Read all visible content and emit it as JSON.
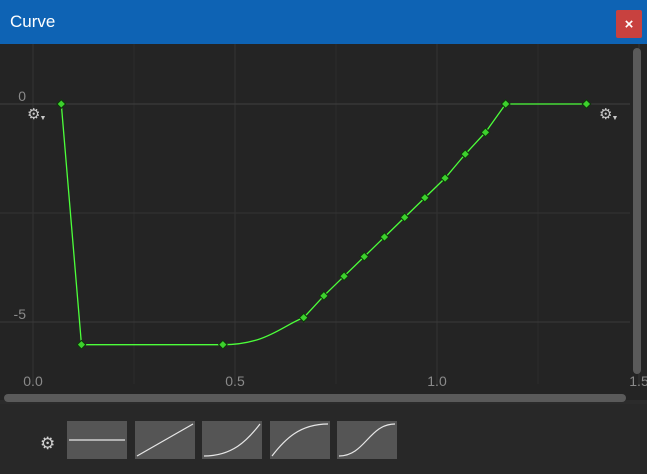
{
  "window": {
    "title": "Curve",
    "close_label": "×"
  },
  "axes": {
    "y_ticks": [
      "0",
      "-5"
    ],
    "x_ticks": [
      "0.0",
      "0.5",
      "1.0",
      "1.5"
    ]
  },
  "chart_data": {
    "type": "line",
    "title": "",
    "xlabel": "",
    "ylabel": "",
    "x_tick_labels": [
      "0.0",
      "0.5",
      "1.0",
      "1.5"
    ],
    "y_tick_labels": [
      "0",
      "-5"
    ],
    "color": "#4cff3a",
    "series": [
      {
        "x": [
          0.07,
          0.12,
          0.47,
          0.67,
          0.72,
          0.77,
          0.82,
          0.87,
          0.92,
          0.97,
          1.02,
          1.07,
          1.12,
          1.17,
          1.37
        ],
        "y": [
          0.0,
          -5.52,
          -5.52,
          -4.9,
          -4.4,
          -3.95,
          -3.5,
          -3.05,
          -2.6,
          -2.15,
          -1.7,
          -1.15,
          -0.65,
          0.0,
          0.0
        ],
        "marked": [
          true,
          true,
          true,
          true,
          true,
          true,
          true,
          true,
          true,
          true,
          true,
          true,
          true,
          true,
          true
        ]
      }
    ]
  },
  "presets": [
    {
      "name": "flat"
    },
    {
      "name": "linear"
    },
    {
      "name": "ease-in"
    },
    {
      "name": "ease-out"
    },
    {
      "name": "ease-in-out"
    }
  ],
  "colors": {
    "curve": "#4cff3a",
    "titlebar": "#0e63b4",
    "close": "#c8413f"
  }
}
